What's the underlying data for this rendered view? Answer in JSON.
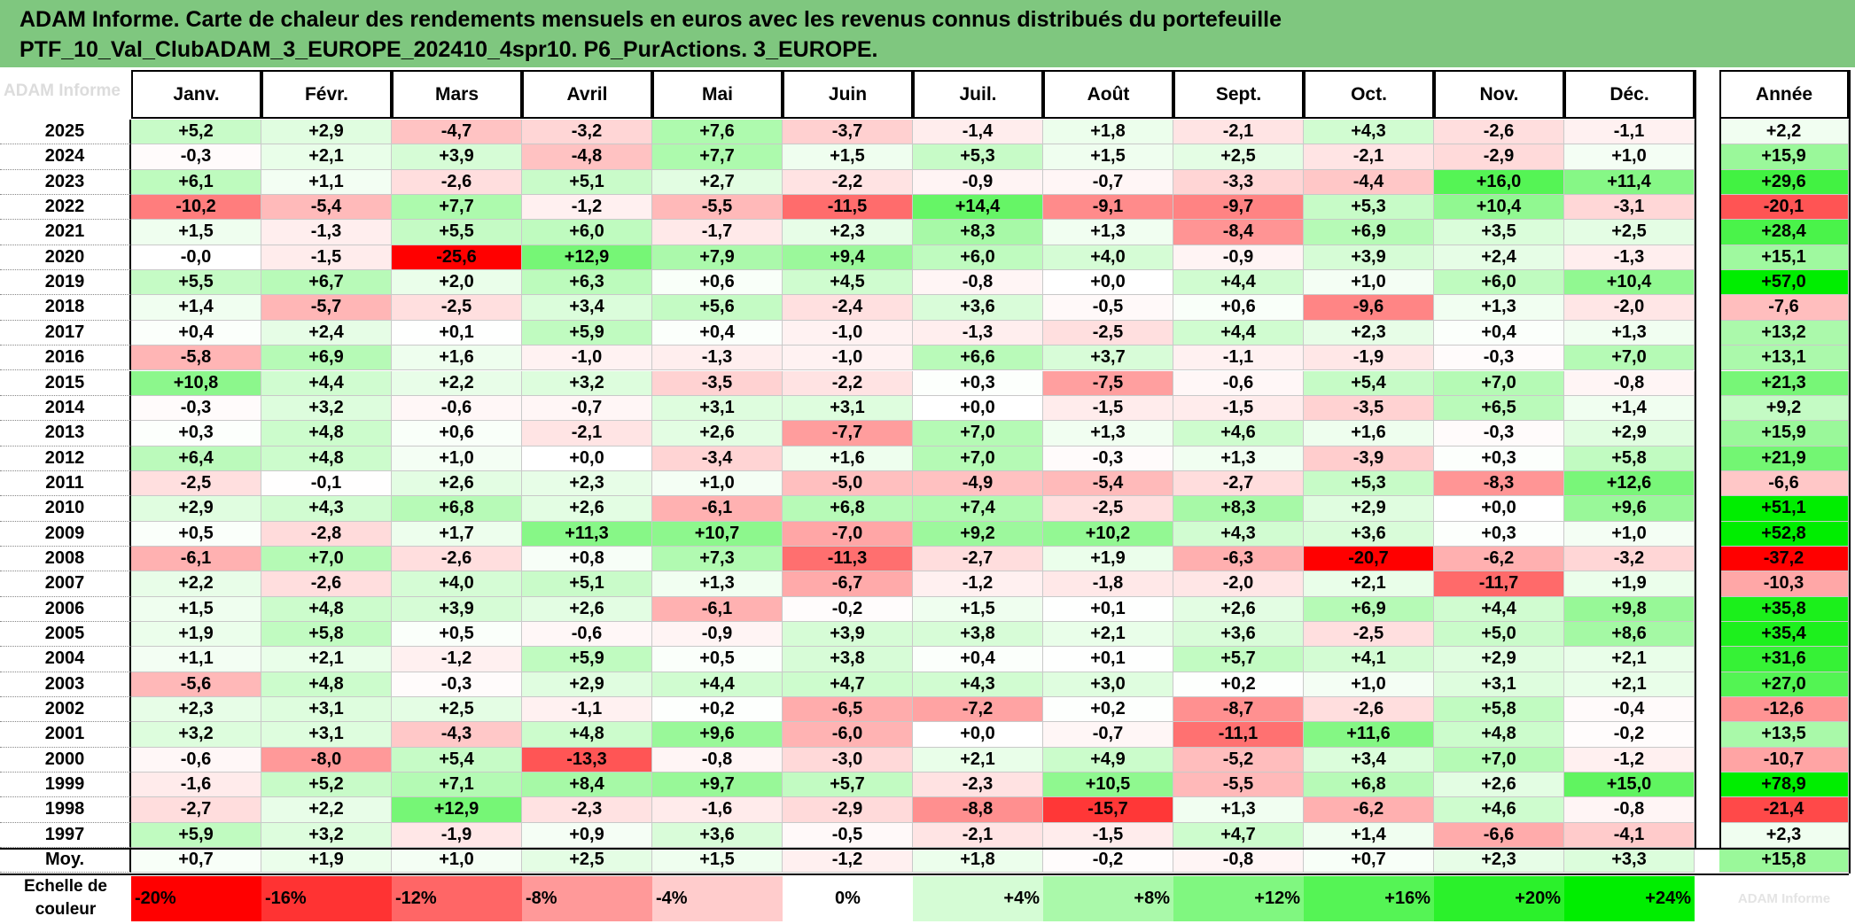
{
  "title": {
    "line1": "ADAM Informe. Carte de chaleur des rendements mensuels en euros avec les revenus connus distribués du portefeuille",
    "line2": "PTF_10_Val_ClubADAM_3_EUROPE_202410_4spr10. P6_PurActions. 3_EUROPE."
  },
  "watermark": "ADAM Informe",
  "chart_data": {
    "type": "heatmap",
    "columns": [
      "Janv.",
      "Févr.",
      "Mars",
      "Avril",
      "Mai",
      "Juin",
      "Juil.",
      "Août",
      "Sept.",
      "Oct.",
      "Nov.",
      "Déc."
    ],
    "annual_header": "Année",
    "rows": [
      {
        "year": "2025",
        "values": [
          "+5,2",
          "+2,9",
          "-4,7",
          "-3,2",
          "+7,6",
          "-3,7",
          "-1,4",
          "+1,8",
          "-2,1",
          "+4,3",
          "-2,6",
          "-1,1"
        ],
        "annual": "+2,2"
      },
      {
        "year": "2024",
        "values": [
          "-0,3",
          "+2,1",
          "+3,9",
          "-4,8",
          "+7,7",
          "+1,5",
          "+5,3",
          "+1,5",
          "+2,5",
          "-2,1",
          "-2,9",
          "+1,0"
        ],
        "annual": "+15,9"
      },
      {
        "year": "2023",
        "values": [
          "+6,1",
          "+1,1",
          "-2,6",
          "+5,1",
          "+2,7",
          "-2,2",
          "-0,9",
          "-0,7",
          "-3,3",
          "-4,4",
          "+16,0",
          "+11,4"
        ],
        "annual": "+29,6"
      },
      {
        "year": "2022",
        "values": [
          "-10,2",
          "-5,4",
          "+7,7",
          "-1,2",
          "-5,5",
          "-11,5",
          "+14,4",
          "-9,1",
          "-9,7",
          "+5,3",
          "+10,4",
          "-3,1"
        ],
        "annual": "-20,1"
      },
      {
        "year": "2021",
        "values": [
          "+1,5",
          "-1,3",
          "+5,5",
          "+6,0",
          "-1,7",
          "+2,3",
          "+8,3",
          "+1,3",
          "-8,4",
          "+6,9",
          "+3,5",
          "+2,5"
        ],
        "annual": "+28,4"
      },
      {
        "year": "2020",
        "values": [
          "-0,0",
          "-1,5",
          "-25,6",
          "+12,9",
          "+7,9",
          "+9,4",
          "+6,0",
          "+4,0",
          "-0,9",
          "+3,9",
          "+2,4",
          "-1,3"
        ],
        "annual": "+15,1"
      },
      {
        "year": "2019",
        "values": [
          "+5,5",
          "+6,7",
          "+2,0",
          "+6,3",
          "+0,6",
          "+4,5",
          "-0,8",
          "+0,0",
          "+4,4",
          "+1,0",
          "+6,0",
          "+10,4"
        ],
        "annual": "+57,0"
      },
      {
        "year": "2018",
        "values": [
          "+1,4",
          "-5,7",
          "-2,5",
          "+3,4",
          "+5,6",
          "-2,4",
          "+3,6",
          "-0,5",
          "+0,6",
          "-9,6",
          "+1,3",
          "-2,0"
        ],
        "annual": "-7,6"
      },
      {
        "year": "2017",
        "values": [
          "+0,4",
          "+2,4",
          "+0,1",
          "+5,9",
          "+0,4",
          "-1,0",
          "-1,3",
          "-2,5",
          "+4,4",
          "+2,3",
          "+0,4",
          "+1,3"
        ],
        "annual": "+13,2"
      },
      {
        "year": "2016",
        "values": [
          "-5,8",
          "+6,9",
          "+1,6",
          "-1,0",
          "-1,3",
          "-1,0",
          "+6,6",
          "+3,7",
          "-1,1",
          "-1,9",
          "-0,3",
          "+7,0"
        ],
        "annual": "+13,1"
      },
      {
        "year": "2015",
        "values": [
          "+10,8",
          "+4,4",
          "+2,2",
          "+3,2",
          "-3,5",
          "-2,2",
          "+0,3",
          "-7,5",
          "-0,6",
          "+5,4",
          "+7,0",
          "-0,8"
        ],
        "annual": "+21,3"
      },
      {
        "year": "2014",
        "values": [
          "-0,3",
          "+3,2",
          "-0,6",
          "-0,7",
          "+3,1",
          "+3,1",
          "+0,0",
          "-1,5",
          "-1,5",
          "-3,5",
          "+6,5",
          "+1,4"
        ],
        "annual": "+9,2"
      },
      {
        "year": "2013",
        "values": [
          "+0,3",
          "+4,8",
          "+0,6",
          "-2,1",
          "+2,6",
          "-7,7",
          "+7,0",
          "+1,3",
          "+4,6",
          "+1,6",
          "-0,3",
          "+2,9"
        ],
        "annual": "+15,9"
      },
      {
        "year": "2012",
        "values": [
          "+6,4",
          "+4,8",
          "+1,0",
          "+0,0",
          "-3,4",
          "+1,6",
          "+7,0",
          "-0,3",
          "+1,3",
          "-3,9",
          "+0,3",
          "+5,8"
        ],
        "annual": "+21,9"
      },
      {
        "year": "2011",
        "values": [
          "-2,5",
          "-0,1",
          "+2,6",
          "+2,3",
          "+1,0",
          "-5,0",
          "-4,9",
          "-5,4",
          "-2,7",
          "+5,3",
          "-8,3",
          "+12,6"
        ],
        "annual": "-6,6"
      },
      {
        "year": "2010",
        "values": [
          "+2,9",
          "+4,3",
          "+6,8",
          "+2,6",
          "-6,1",
          "+6,8",
          "+7,4",
          "-2,5",
          "+8,3",
          "+2,9",
          "+0,0",
          "+9,6"
        ],
        "annual": "+51,1"
      },
      {
        "year": "2009",
        "values": [
          "+0,5",
          "-2,8",
          "+1,7",
          "+11,3",
          "+10,7",
          "-7,0",
          "+9,2",
          "+10,2",
          "+4,3",
          "+3,6",
          "+0,3",
          "+1,0"
        ],
        "annual": "+52,8"
      },
      {
        "year": "2008",
        "values": [
          "-6,1",
          "+7,0",
          "-2,6",
          "+0,8",
          "+7,3",
          "-11,3",
          "-2,7",
          "+1,9",
          "-6,3",
          "-20,7",
          "-6,2",
          "-3,2"
        ],
        "annual": "-37,2"
      },
      {
        "year": "2007",
        "values": [
          "+2,2",
          "-2,6",
          "+4,0",
          "+5,1",
          "+1,3",
          "-6,7",
          "-1,2",
          "-1,8",
          "-2,0",
          "+2,1",
          "-11,7",
          "+1,9"
        ],
        "annual": "-10,3"
      },
      {
        "year": "2006",
        "values": [
          "+1,5",
          "+4,8",
          "+3,9",
          "+2,6",
          "-6,1",
          "-0,2",
          "+1,5",
          "+0,1",
          "+2,6",
          "+6,9",
          "+4,4",
          "+9,8"
        ],
        "annual": "+35,8"
      },
      {
        "year": "2005",
        "values": [
          "+1,9",
          "+5,8",
          "+0,5",
          "-0,6",
          "-0,9",
          "+3,9",
          "+3,8",
          "+2,1",
          "+3,6",
          "-2,5",
          "+5,0",
          "+8,6"
        ],
        "annual": "+35,4"
      },
      {
        "year": "2004",
        "values": [
          "+1,1",
          "+2,1",
          "-1,2",
          "+5,9",
          "+0,5",
          "+3,8",
          "+0,4",
          "+0,1",
          "+5,7",
          "+4,1",
          "+2,9",
          "+2,1"
        ],
        "annual": "+31,6"
      },
      {
        "year": "2003",
        "values": [
          "-5,6",
          "+4,8",
          "-0,3",
          "+2,9",
          "+4,4",
          "+4,7",
          "+4,3",
          "+3,0",
          "+0,2",
          "+1,0",
          "+3,1",
          "+2,1"
        ],
        "annual": "+27,0"
      },
      {
        "year": "2002",
        "values": [
          "+2,3",
          "+3,1",
          "+2,5",
          "-1,1",
          "+0,2",
          "-6,5",
          "-7,2",
          "+0,2",
          "-8,7",
          "-2,6",
          "+5,8",
          "-0,4"
        ],
        "annual": "-12,6"
      },
      {
        "year": "2001",
        "values": [
          "+3,2",
          "+3,1",
          "-4,3",
          "+4,8",
          "+9,6",
          "-6,0",
          "+0,0",
          "-0,7",
          "-11,1",
          "+11,6",
          "+4,8",
          "-0,2"
        ],
        "annual": "+13,5"
      },
      {
        "year": "2000",
        "values": [
          "-0,6",
          "-8,0",
          "+5,4",
          "-13,3",
          "-0,8",
          "-3,0",
          "+2,1",
          "+4,9",
          "-5,2",
          "+3,4",
          "+7,0",
          "-1,2"
        ],
        "annual": "-10,7"
      },
      {
        "year": "1999",
        "values": [
          "-1,6",
          "+5,2",
          "+7,1",
          "+8,4",
          "+9,7",
          "+5,7",
          "-2,3",
          "+10,5",
          "-5,5",
          "+6,8",
          "+2,6",
          "+15,0"
        ],
        "annual": "+78,9"
      },
      {
        "year": "1998",
        "values": [
          "-2,7",
          "+2,2",
          "+12,9",
          "-2,3",
          "-1,6",
          "-2,9",
          "-8,8",
          "-15,7",
          "+1,3",
          "-6,2",
          "+4,6",
          "-0,8"
        ],
        "annual": "-21,4"
      },
      {
        "year": "1997",
        "values": [
          "+5,9",
          "+3,2",
          "-1,9",
          "+0,9",
          "+3,6",
          "-0,5",
          "-2,1",
          "-1,5",
          "+4,7",
          "+1,4",
          "-6,6",
          "-4,1"
        ],
        "annual": "+2,3"
      }
    ],
    "average": {
      "label": "Moy.",
      "values": [
        "+0,7",
        "+1,9",
        "+1,0",
        "+2,5",
        "+1,5",
        "-1,2",
        "+1,8",
        "-0,2",
        "-0,8",
        "+0,7",
        "+2,3",
        "+3,3"
      ],
      "annual": "+15,8"
    },
    "scale": {
      "label_line1": "Echelle de",
      "label_line2": "couleur",
      "items": [
        "-20%",
        "-16%",
        "-12%",
        "-8%",
        "-4%",
        "0%",
        "+4%",
        "+8%",
        "+12%",
        "+16%",
        "+20%",
        "+24%"
      ],
      "values": [
        -20,
        -16,
        -12,
        -8,
        -4,
        0,
        4,
        8,
        12,
        16,
        20,
        24
      ],
      "footnote": "ADAM Informe"
    },
    "colors": {
      "negative_max": "#ff0000",
      "neutral": "#ffffff",
      "positive_max": "#00ee00",
      "title_bg": "#7fc77f"
    }
  }
}
